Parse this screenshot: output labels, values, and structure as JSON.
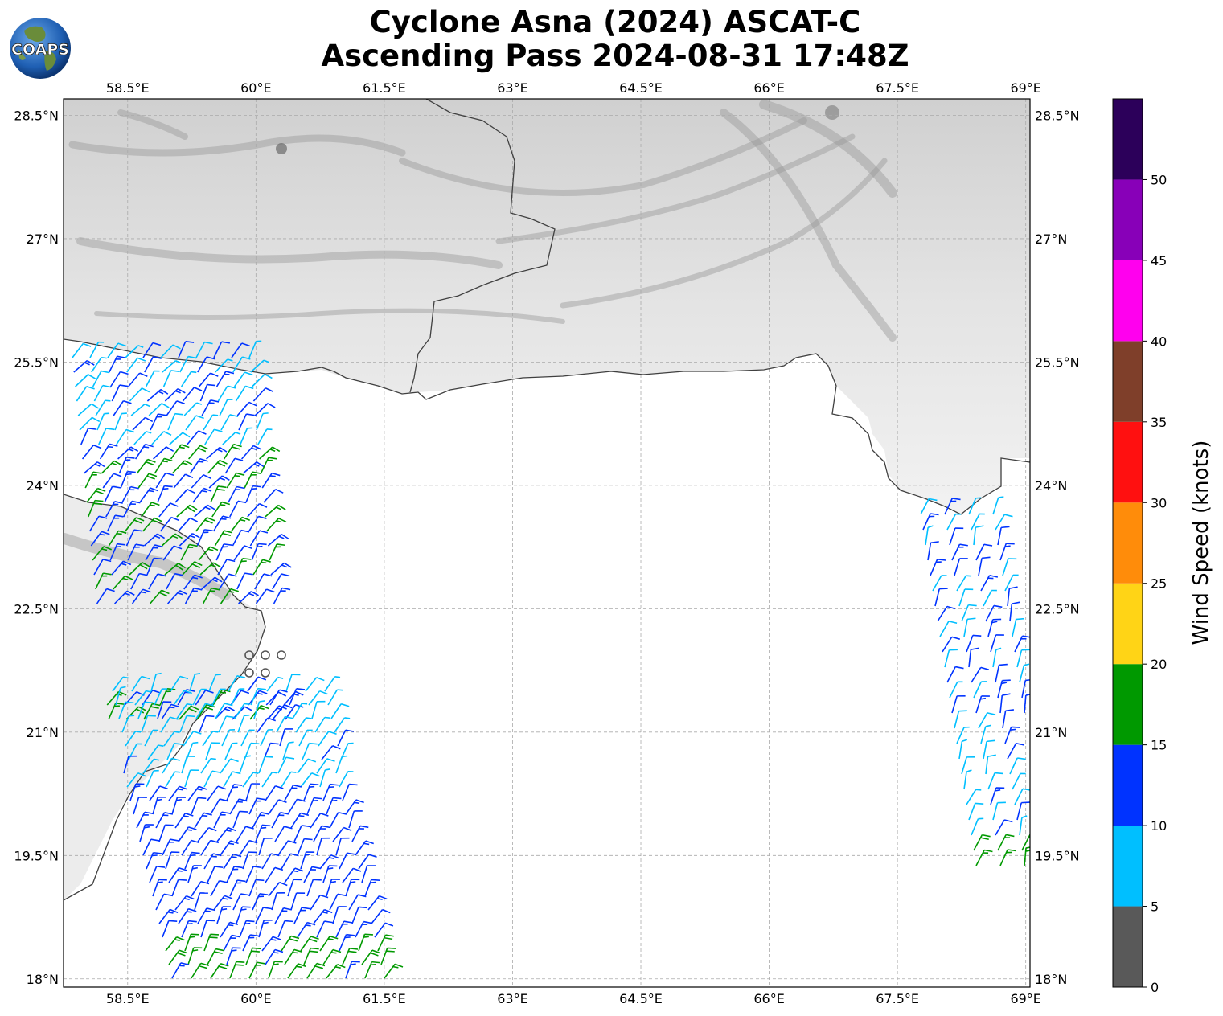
{
  "title": {
    "line1": "Cyclone Asna (2024) ASCAT-C",
    "line2": "Ascending Pass 2024-08-31 17:48Z"
  },
  "logo": {
    "text": "COAPS",
    "icon": "globe-logo-icon"
  },
  "map": {
    "lon_range": [
      57.75,
      69.05
    ],
    "lat_range": [
      17.9,
      28.7
    ],
    "x_ticks": [
      "58.5°E",
      "60°E",
      "61.5°E",
      "63°E",
      "64.5°E",
      "66°E",
      "67.5°E",
      "69°E"
    ],
    "x_tick_values": [
      58.5,
      60,
      61.5,
      63,
      64.5,
      66,
      67.5,
      69
    ],
    "y_ticks": [
      "28.5°N",
      "27°N",
      "25.5°N",
      "24°N",
      "22.5°N",
      "21°N",
      "19.5°N",
      "18°N"
    ],
    "y_tick_values": [
      28.5,
      27,
      25.5,
      24,
      22.5,
      21,
      19.5,
      18
    ],
    "grid": true,
    "background": "grayscale infrared satellite over land, white ocean"
  },
  "colorbar": {
    "label": "Wind Speed (knots)",
    "ticks": [
      "0",
      "5",
      "10",
      "15",
      "20",
      "25",
      "30",
      "35",
      "40",
      "45",
      "50"
    ],
    "bins": [
      {
        "min": 0,
        "max": 5,
        "color": "#595959"
      },
      {
        "min": 5,
        "max": 10,
        "color": "#00bfff"
      },
      {
        "min": 10,
        "max": 15,
        "color": "#0033ff"
      },
      {
        "min": 15,
        "max": 20,
        "color": "#009900"
      },
      {
        "min": 20,
        "max": 25,
        "color": "#ffd416"
      },
      {
        "min": 25,
        "max": 30,
        "color": "#ff8c0a"
      },
      {
        "min": 30,
        "max": 35,
        "color": "#ff1010"
      },
      {
        "min": 35,
        "max": 40,
        "color": "#7f3f2a"
      },
      {
        "min": 40,
        "max": 45,
        "color": "#ff00ee"
      },
      {
        "min": 45,
        "max": 50,
        "color": "#8800b8"
      },
      {
        "min": 50,
        "max": 55,
        "color": "#2c005a"
      }
    ]
  }
}
